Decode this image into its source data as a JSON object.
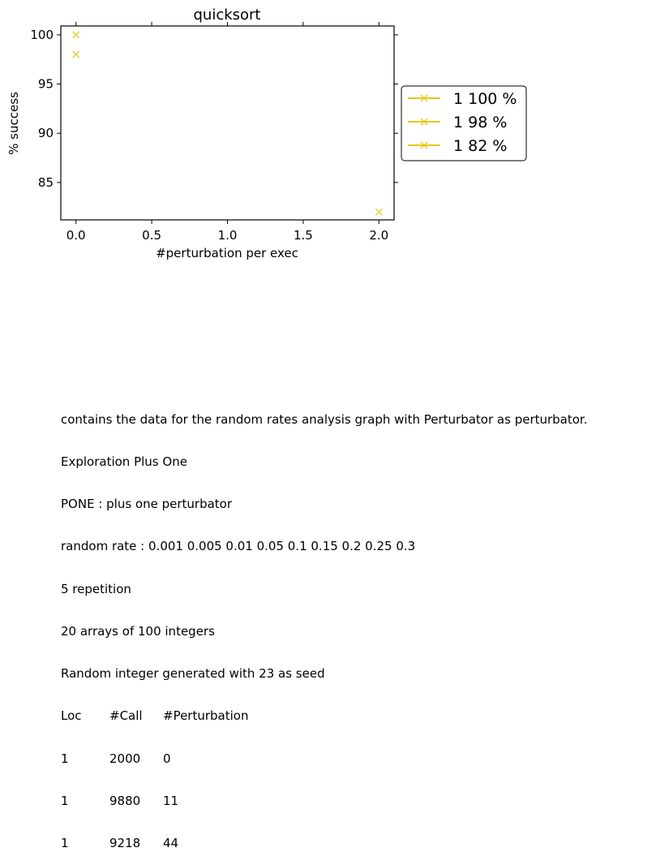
{
  "chart_data": {
    "type": "scatter",
    "title": "quicksort",
    "xlabel": "#perturbation per exec",
    "ylabel": "% success",
    "xlim": [
      -0.1,
      2.1
    ],
    "ylim": [
      81.2,
      100.9
    ],
    "xticks": [
      0.0,
      0.5,
      1.0,
      1.5,
      2.0
    ],
    "xtick_labels": [
      "0.0",
      "0.5",
      "1.0",
      "1.5",
      "2.0"
    ],
    "yticks": [
      85,
      90,
      95,
      100
    ],
    "ytick_labels": [
      "85",
      "90",
      "95",
      "100"
    ],
    "grid": false,
    "legend_placement": "right-outside",
    "marker_color": "#e8c81a",
    "series": [
      {
        "name": "1 100 %",
        "x": [
          0
        ],
        "y": [
          100
        ]
      },
      {
        "name": "1 98 %",
        "x": [
          0
        ],
        "y": [
          98
        ]
      },
      {
        "name": "1 82 %",
        "x": [
          2
        ],
        "y": [
          82
        ]
      }
    ]
  },
  "caption": {
    "lines": [
      "contains the data for the random rates analysis graph with Perturbator as perturbator.",
      "Exploration Plus One",
      "PONE : plus one perturbator",
      "random rate : 0.001 0.005 0.01 0.05 0.1 0.15 0.2 0.25 0.3",
      "5 repetition",
      "20 arrays of 100 integers",
      "Random integer generated with 23 as seed"
    ],
    "table_header": [
      "Loc",
      "#Call",
      "#Perturbation"
    ],
    "table_rows": [
      [
        "1",
        "2000",
        "0"
      ],
      [
        "1",
        "9880",
        "11"
      ],
      [
        "1",
        "9218",
        "44"
      ]
    ]
  }
}
